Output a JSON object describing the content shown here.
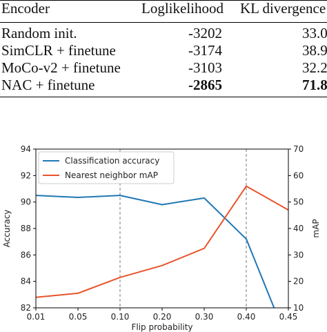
{
  "table": {
    "headers": [
      "Encoder",
      "Loglikelihood",
      "KL divergence"
    ],
    "rows": [
      {
        "encoder": "Random init.",
        "loglikelihood": "-3202",
        "kl": "33.0",
        "bold": false
      },
      {
        "encoder": "SimCLR + finetune",
        "loglikelihood": "-3174",
        "kl": "38.9",
        "bold": false
      },
      {
        "encoder": "MoCo-v2 + finetune",
        "loglikelihood": "-3103",
        "kl": "32.2",
        "bold": false
      },
      {
        "encoder": "NAC + finetune",
        "loglikelihood": "-2865",
        "kl": "71.8",
        "bold": true
      }
    ]
  },
  "chart_data": {
    "type": "line",
    "title": "",
    "xlabel": "Flip probability",
    "ylabel": "Accuracy",
    "y2label": "mAP",
    "x_ticks": [
      "0.01",
      "0.05",
      "0.10",
      "0.20",
      "0.30",
      "0.40",
      "0.45"
    ],
    "x_tick_values": [
      0.01,
      0.05,
      0.1,
      0.2,
      0.3,
      0.4,
      0.45
    ],
    "ylim": [
      82,
      94
    ],
    "y_ticks": [
      82,
      84,
      86,
      88,
      90,
      92,
      94
    ],
    "y2lim": [
      10,
      70
    ],
    "y2_ticks": [
      10,
      20,
      30,
      40,
      50,
      60,
      70
    ],
    "vlines": [
      0.1,
      0.4
    ],
    "legend_placement": "top-left",
    "series": [
      {
        "name": "Classification accuracy",
        "axis": "left",
        "color": "#1f77b4",
        "x": [
          0.01,
          0.05,
          0.1,
          0.2,
          0.3,
          0.4,
          0.433
        ],
        "y": [
          90.5,
          90.35,
          90.5,
          89.8,
          90.3,
          87.2,
          82.0
        ]
      },
      {
        "name": "Nearest neighbor mAP",
        "axis": "right",
        "color": "#e8532b",
        "x": [
          0.01,
          0.05,
          0.1,
          0.2,
          0.3,
          0.4,
          0.45
        ],
        "y": [
          14,
          15.5,
          21.5,
          26,
          32.5,
          56,
          47
        ]
      }
    ]
  }
}
